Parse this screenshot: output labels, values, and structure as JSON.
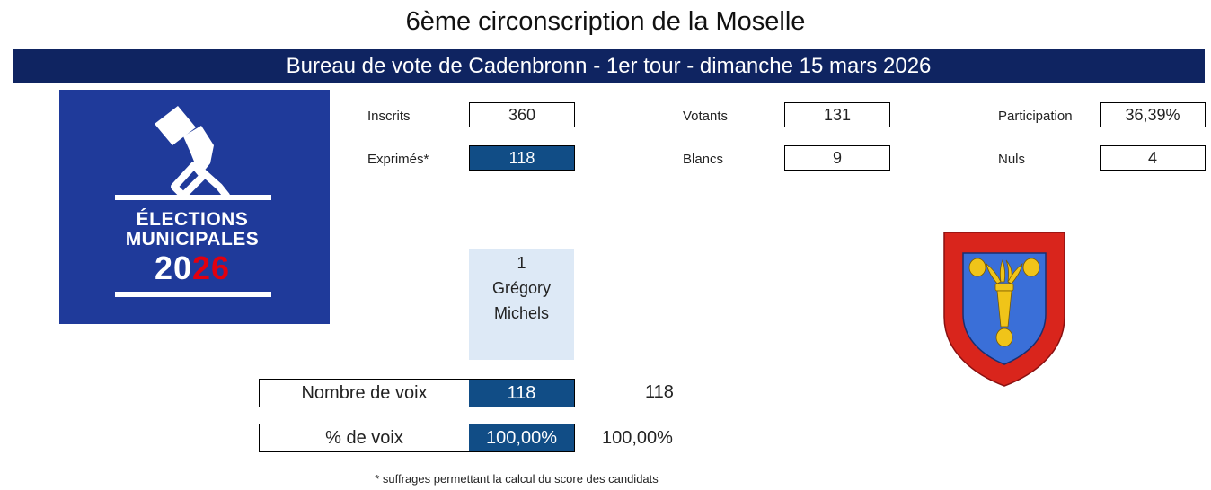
{
  "header": {
    "title": "6ème circonscription de la Moselle",
    "banner": "Bureau de vote de Cadenbronn - 1er tour - dimanche 15 mars 2026"
  },
  "logo": {
    "line1": "ÉLECTIONS",
    "line2": "MUNICIPALES",
    "year_a": "20",
    "year_b": "2",
    "year_c": "6",
    "bg_color": "#1f3a9a",
    "accent_color": "#e1000f"
  },
  "stats": {
    "inscrits": {
      "label": "Inscrits",
      "value": "360"
    },
    "votants": {
      "label": "Votants",
      "value": "131"
    },
    "participation": {
      "label": "Participation",
      "value": "36,39%"
    },
    "exprimes": {
      "label": "Exprimés*",
      "value": "118"
    },
    "blancs": {
      "label": "Blancs",
      "value": "9"
    },
    "nuls": {
      "label": "Nuls",
      "value": "4"
    }
  },
  "candidate": {
    "number": "1",
    "first_name": "Grégory",
    "last_name": "Michels"
  },
  "results": {
    "voix_label": "Nombre de voix",
    "voix_value": "118",
    "voix_total": "118",
    "pct_label": "% de voix",
    "pct_value": "100,00%",
    "pct_total": "100,00%"
  },
  "footnote": "* suffrages permettant la calcul du score des candidats",
  "coat_of_arms": {
    "name": "coat-of-arms-icon",
    "border_color": "#d9251c",
    "field_color": "#3a6fd8",
    "charge_color": "#f0c419"
  }
}
